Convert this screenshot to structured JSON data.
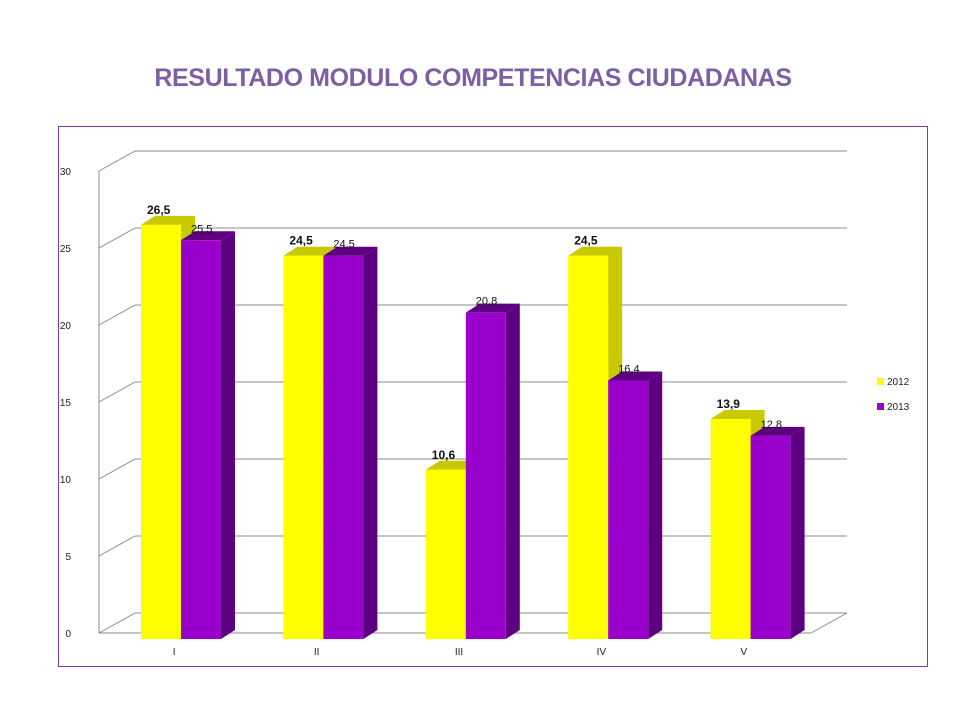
{
  "page": {
    "title": "RESULTADO MODULO COMPETENCIAS CIUDADANAS"
  },
  "chart_data": {
    "type": "bar",
    "style": "3d-clustered-column",
    "title": "RESULTADO MODULO COMPETENCIAS CIUDADANAS",
    "categories": [
      "I",
      "II",
      "III",
      "IV",
      "V"
    ],
    "series": [
      {
        "name": "2012",
        "values": [
          26.5,
          24.5,
          10.6,
          24.5,
          13.9
        ],
        "labels": [
          "26,5",
          "24,5",
          "10,6",
          "24,5",
          "13,9"
        ],
        "color": "#ffff00",
        "side_color": "#c9c900"
      },
      {
        "name": "2013",
        "values": [
          25.5,
          24.5,
          20.8,
          16.4,
          12.8
        ],
        "labels": [
          "25,5",
          "24,5",
          "20,8",
          "16,4",
          "12,8"
        ],
        "color": "#9900cc",
        "side_color": "#5c0080"
      }
    ],
    "ylim": [
      0,
      30
    ],
    "yticks": [
      0,
      5,
      10,
      15,
      20,
      25,
      30
    ],
    "grid": true,
    "legend_position": "right",
    "xlabel": "",
    "ylabel": ""
  }
}
